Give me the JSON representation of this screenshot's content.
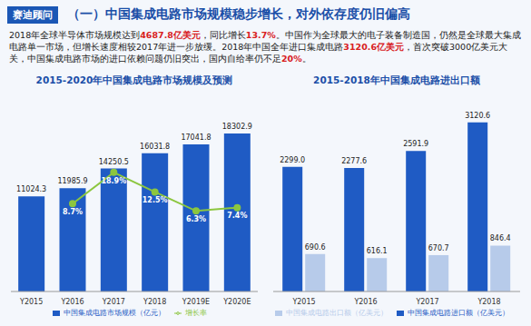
{
  "brand": "赛迪顾问",
  "heading": "（一）中国集成电路市场规模稳步增长，对外依存度仍旧偏高",
  "paragraph": [
    {
      "text": "2018年全球半导体市场规模达到",
      "emphasis": false
    },
    {
      "text": "4687.8亿美元",
      "emphasis": true
    },
    {
      "text": "，同比增长",
      "emphasis": false
    },
    {
      "text": "13.7%",
      "emphasis": true
    },
    {
      "text": "。中国作为全球最大的电子装备制造国，仍然是全球最大集成电路单一市场，但增长速度相较2017年进一步放缓。2018年中国全年进口集成电路",
      "emphasis": false
    },
    {
      "text": "3120.6亿美元",
      "emphasis": true
    },
    {
      "text": "，首次突破3000亿美元大关，中国集成电路市场的进口依赖问题仍旧突出，国内自给率仍不足",
      "emphasis": false
    },
    {
      "text": "20%",
      "emphasis": true
    },
    {
      "text": "。",
      "emphasis": false
    }
  ],
  "chart_data": [
    {
      "type": "bar",
      "title": "2015-2020年中国集成电路市场规模及预测",
      "categories": [
        "Y2015",
        "Y2016",
        "Y2017",
        "Y2018",
        "Y2019E",
        "Y2020E"
      ],
      "series": [
        {
          "name": "中国集成电路市场规模（亿元）",
          "type": "bar",
          "color": "#1f5bc4",
          "values": [
            11024.3,
            11985.9,
            14250.5,
            16031.8,
            17041.8,
            18302.9
          ],
          "value_labels": [
            "11024.3",
            "11985.9",
            "14250.5",
            "16031.8",
            "17041.8",
            "18302.9"
          ]
        },
        {
          "name": "增长率",
          "type": "line",
          "axis": "y2",
          "color": "#8cc63f",
          "marker": "circle",
          "values": [
            null,
            8.7,
            18.9,
            12.5,
            6.3,
            7.4
          ],
          "value_labels": [
            null,
            "8.7%",
            "18.9%",
            "12.5%",
            "6.3%",
            "7.4%"
          ]
        }
      ],
      "ylim": [
        0,
        22000
      ],
      "y2lim": [
        -20,
        42
      ],
      "data_labels": true,
      "tick_labels": "x",
      "grid": false,
      "legend": "bottom"
    },
    {
      "type": "bar",
      "title": "2015-2018年中国集成电路进出口额",
      "categories": [
        "Y2015",
        "Y2016",
        "Y2017",
        "Y2018"
      ],
      "series": [
        {
          "name": "中国集成电路进口额（亿美元）",
          "color": "#1f5bc4",
          "values": [
            2299.0,
            2277.6,
            2591.9,
            3120.6
          ],
          "value_labels": [
            "2299.0",
            "2277.6",
            "2591.9",
            "3120.6"
          ]
        },
        {
          "name": "中国集成电路出口额（亿美元）",
          "color": "#b7cbea",
          "values": [
            690.6,
            616.1,
            670.7,
            846.4
          ],
          "value_labels": [
            "690.6",
            "616.1",
            "670.7",
            "846.4"
          ]
        }
      ],
      "ylim": [
        0,
        3500
      ],
      "data_labels": true,
      "tick_labels": "x",
      "grid": false,
      "legend": "bottom"
    }
  ]
}
